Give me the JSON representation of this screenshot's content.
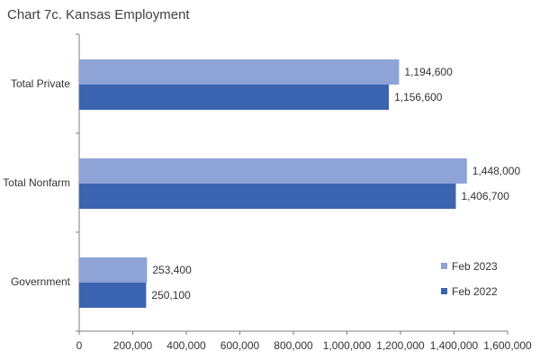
{
  "title": "Chart 7c. Kansas Employment",
  "chart_data": {
    "type": "bar",
    "orientation": "horizontal",
    "title": "Chart 7c. Kansas Employment",
    "xlabel": "",
    "ylabel": "",
    "categories": [
      "Total Private",
      "Total Nonfarm",
      "Government"
    ],
    "series": [
      {
        "name": "Feb 2023",
        "values": [
          1194600,
          1448000,
          253400
        ],
        "color": "#8ea3d6",
        "labels": [
          "1,194,600",
          "1,448,000",
          "253,400"
        ]
      },
      {
        "name": "Feb 2022",
        "values": [
          1156600,
          1406700,
          250100
        ],
        "color": "#3b64b0",
        "labels": [
          "1,156,600",
          "1,406,700",
          "250,100"
        ]
      }
    ],
    "xlim": [
      0,
      1600000
    ],
    "xticks": [
      0,
      200000,
      400000,
      600000,
      800000,
      1000000,
      1200000,
      1400000,
      1600000
    ],
    "xtick_labels": [
      "0",
      "200,000",
      "400,000",
      "600,000",
      "800,000",
      "1,000,000",
      "1,200,000",
      "1,400,000",
      "1,600,000"
    ],
    "grid": false,
    "legend_position": "bottom-right"
  }
}
